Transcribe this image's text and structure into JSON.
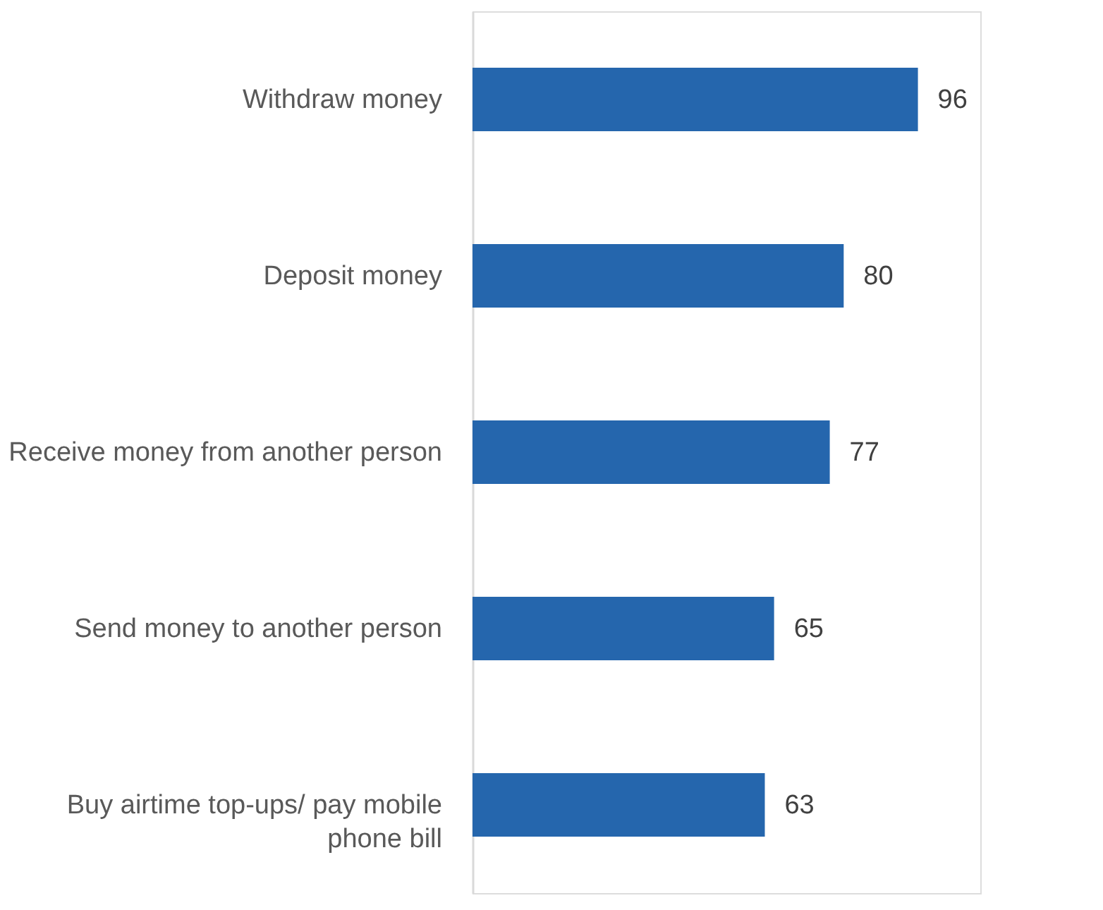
{
  "chart_data": {
    "type": "bar",
    "orientation": "horizontal",
    "data_labels": true,
    "categories": [
      "Withdraw money",
      "Deposit money",
      "Receive money from another person",
      "Send money to another person",
      "Buy airtime top-ups/ pay mobile\nphone bill"
    ],
    "values": [
      96,
      80,
      77,
      65,
      63
    ],
    "color": "#2566ad",
    "grid": false
  }
}
